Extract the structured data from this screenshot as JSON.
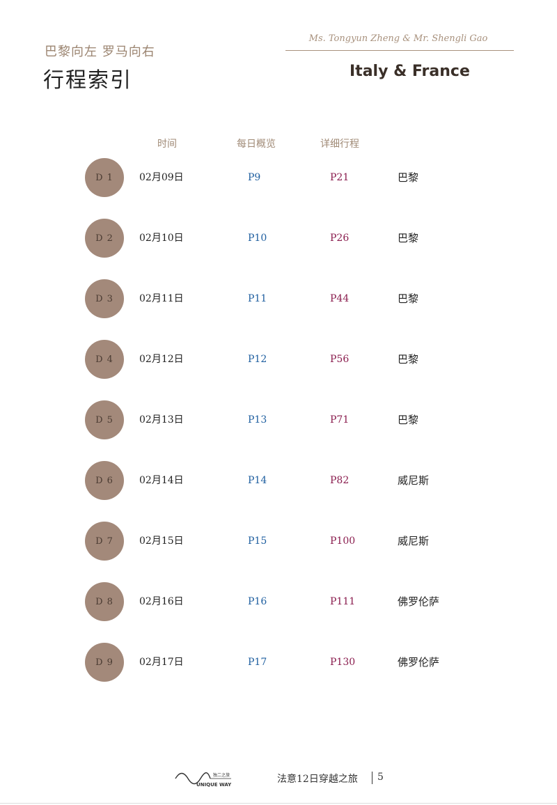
{
  "header": {
    "subtitle_cn": "巴黎向左 罗马向右",
    "title_cn": "行程索引",
    "names": "Ms. Tongyun Zheng & Mr. Shengli Gao",
    "title_en": "Italy & France"
  },
  "columns": {
    "time": "时间",
    "overview": "每日概览",
    "detail": "详细行程"
  },
  "rows": [
    {
      "day": "D 1",
      "date": "02月09日",
      "overview": "P9",
      "detail": "P21",
      "city": "巴黎"
    },
    {
      "day": "D 2",
      "date": "02月10日",
      "overview": "P10",
      "detail": "P26",
      "city": "巴黎"
    },
    {
      "day": "D 3",
      "date": "02月11日",
      "overview": "P11",
      "detail": "P44",
      "city": "巴黎"
    },
    {
      "day": "D 4",
      "date": "02月12日",
      "overview": "P12",
      "detail": "P56",
      "city": "巴黎"
    },
    {
      "day": "D 5",
      "date": "02月13日",
      "overview": "P13",
      "detail": "P71",
      "city": "巴黎"
    },
    {
      "day": "D 6",
      "date": "02月14日",
      "overview": "P14",
      "detail": "P82",
      "city": "威尼斯"
    },
    {
      "day": "D 7",
      "date": "02月15日",
      "overview": "P15",
      "detail": "P100",
      "city": "威尼斯"
    },
    {
      "day": "D 8",
      "date": "02月16日",
      "overview": "P16",
      "detail": "P111",
      "city": "佛罗伦萨"
    },
    {
      "day": "D 9",
      "date": "02月17日",
      "overview": "P17",
      "detail": "P130",
      "city": "佛罗伦萨"
    }
  ],
  "footer": {
    "logo_cn": "独二之旅",
    "logo_en": "UNIQUE WAY",
    "title": "法意12日穿越之旅",
    "page": "5"
  },
  "colors": {
    "circle": "#a3897a",
    "overview_link": "#1f5fa0",
    "detail_link": "#8a1d4e",
    "accent": "#9b8470"
  }
}
